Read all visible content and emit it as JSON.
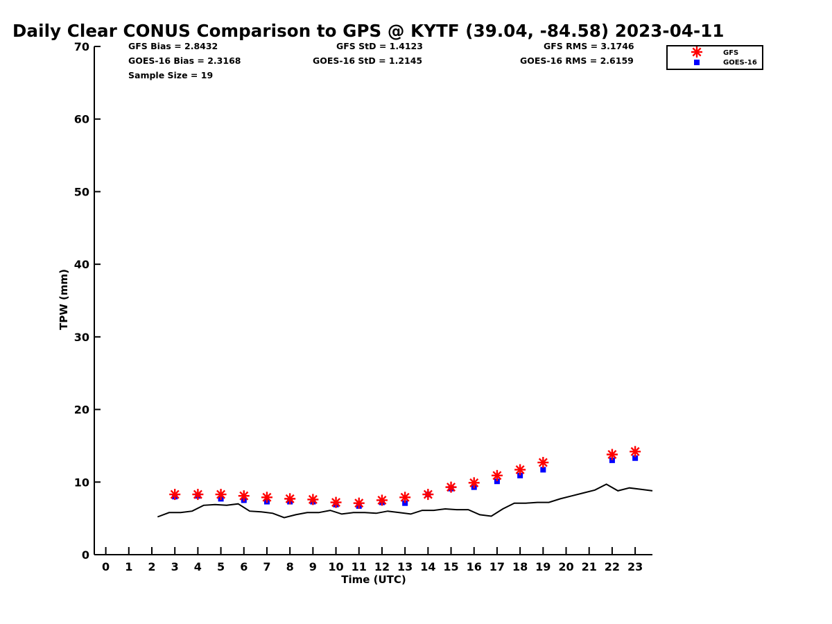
{
  "chart_data": {
    "type": "scatter",
    "title": "Daily Clear CONUS Comparison to GPS @ KYTF (39.04, -84.58) 2023-04-11",
    "xlabel": "Time (UTC)",
    "ylabel": "TPW (mm)",
    "xlim": [
      -0.5,
      23.75
    ],
    "ylim": [
      0,
      70
    ],
    "x_ticks": [
      0,
      1,
      2,
      3,
      4,
      5,
      6,
      7,
      8,
      9,
      10,
      11,
      12,
      13,
      14,
      15,
      16,
      17,
      18,
      19,
      20,
      21,
      22,
      23
    ],
    "y_ticks": [
      0,
      10,
      20,
      30,
      40,
      50,
      60,
      70
    ],
    "grid": false,
    "legend": {
      "placement": "top-right",
      "entries": [
        "GFS",
        "GOES-16"
      ]
    },
    "stats": {
      "gfs_bias": "GFS Bias = 2.8432",
      "goes_bias": "GOES-16 Bias = 2.3168",
      "sample_size": "Sample Size = 19",
      "gfs_std": "GFS StD = 1.4123",
      "goes_std": "GOES-16 StD = 1.2145",
      "gfs_rms": "GFS RMS = 3.1746",
      "goes_rms": "GOES-16 RMS = 2.6159"
    },
    "series": [
      {
        "name": "GFS",
        "marker": "asterisk",
        "color": "#ff0000",
        "x": [
          3,
          4,
          5,
          6,
          7,
          8,
          9,
          10,
          11,
          12,
          13,
          14,
          15,
          16,
          17,
          18,
          19,
          22,
          23
        ],
        "y": [
          8.3,
          8.3,
          8.3,
          8.1,
          7.9,
          7.7,
          7.6,
          7.2,
          7.1,
          7.5,
          7.9,
          8.3,
          9.3,
          9.9,
          10.9,
          11.7,
          12.7,
          13.8,
          14.2
        ]
      },
      {
        "name": "GOES-16",
        "marker": "square",
        "color": "#0000ff",
        "x": [
          3,
          4,
          5,
          6,
          7,
          8,
          9,
          10,
          11,
          12,
          13,
          14,
          15,
          16,
          17,
          18,
          19,
          22,
          23
        ],
        "y": [
          8.0,
          8.1,
          7.7,
          7.5,
          7.3,
          7.3,
          7.3,
          6.9,
          6.7,
          7.2,
          7.1,
          8.3,
          9.1,
          9.3,
          10.1,
          10.9,
          11.7,
          13.0,
          13.3
        ]
      },
      {
        "name": "GPS",
        "marker": "line",
        "color": "#000000",
        "x": [
          2.25,
          2.75,
          3.25,
          3.75,
          4.25,
          4.75,
          5.25,
          5.75,
          6.25,
          6.75,
          7.25,
          7.75,
          8.25,
          8.75,
          9.25,
          9.75,
          10.25,
          10.75,
          11.25,
          11.75,
          12.25,
          12.75,
          13.25,
          13.75,
          14.25,
          14.75,
          15.25,
          15.75,
          16.25,
          16.75,
          17.25,
          17.75,
          18.25,
          18.75,
          19.25,
          19.75,
          20.25,
          20.75,
          21.25,
          21.75,
          22.25,
          22.75,
          23.25,
          23.75
        ],
        "y": [
          5.2,
          5.8,
          5.8,
          6.0,
          6.8,
          6.9,
          6.8,
          7.0,
          6.0,
          5.9,
          5.7,
          5.1,
          5.5,
          5.8,
          5.8,
          6.1,
          5.6,
          5.8,
          5.8,
          5.7,
          6.0,
          5.8,
          5.6,
          6.1,
          6.1,
          6.3,
          6.2,
          6.2,
          5.5,
          5.3,
          6.3,
          7.1,
          7.1,
          7.2,
          7.2,
          7.7,
          8.1,
          8.5,
          8.9,
          9.7,
          8.8,
          9.2,
          9.0,
          8.8
        ]
      }
    ]
  }
}
